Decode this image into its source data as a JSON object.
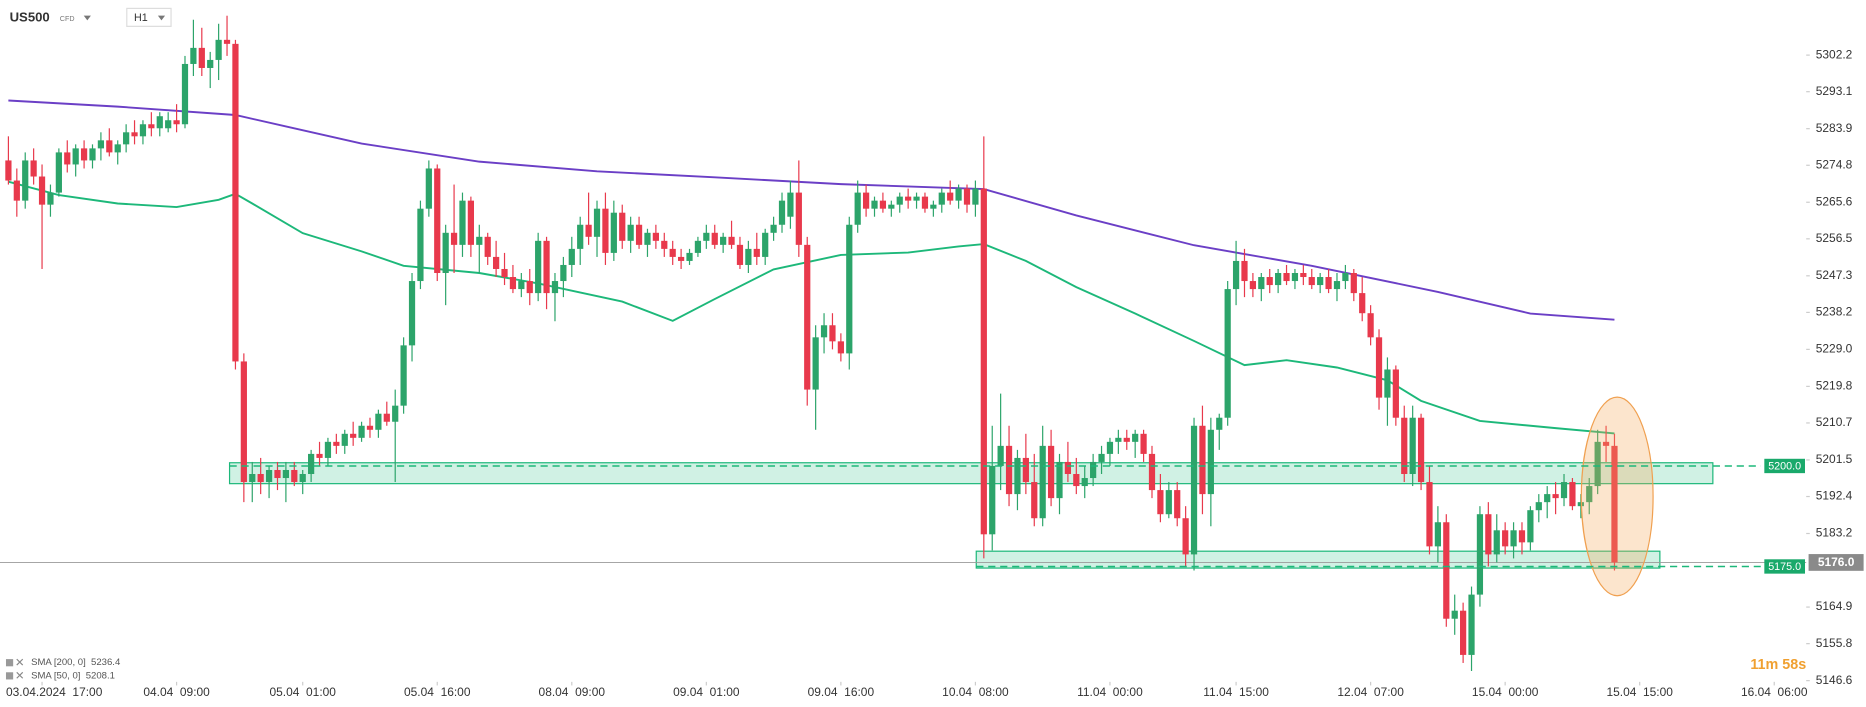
{
  "header": {
    "symbol": "US500",
    "kind": "CFD",
    "timeframe": "H1"
  },
  "countdown": "11m 58s",
  "chart_data": {
    "type": "candlestick",
    "up_color": "#2ca46a",
    "down_color": "#e8394c",
    "xlim": [
      -1,
      213.8
    ],
    "ylim": [
      5146.3,
      5315.9
    ],
    "grid": false,
    "yticks": [
      5302.2,
      5293.1,
      5283.9,
      5274.8,
      5265.6,
      5256.5,
      5247.3,
      5238.2,
      {
        "value": 5229,
        "label": "5229.0"
      },
      5219.8,
      5210.7,
      5201.5,
      5192.4,
      5183.2,
      5164.9,
      5155.8,
      5146.6
    ],
    "xticks": [
      {
        "value": 4,
        "label": "03.04.2024  17:00"
      },
      {
        "value": 20,
        "label": "04.04  09:00"
      },
      {
        "value": 35,
        "label": "05.04  01:00"
      },
      {
        "value": 51,
        "label": "05.04  16:00"
      },
      {
        "value": 67,
        "label": "08.04  09:00"
      },
      {
        "value": 83,
        "label": "09.04  01:00"
      },
      {
        "value": 99,
        "label": "09.04  16:00"
      },
      {
        "value": 115,
        "label": "10.04  08:00"
      },
      {
        "value": 131,
        "label": "11.04  00:00"
      },
      {
        "value": 146,
        "label": "11.04  15:00"
      },
      {
        "value": 162,
        "label": "12.04  07:00"
      },
      {
        "value": 178,
        "label": "15.04  00:00"
      },
      {
        "value": 194,
        "label": "15.04  15:00"
      },
      {
        "value": 210,
        "label": "16.04  06:00"
      }
    ],
    "ohlc": [
      [
        5276,
        5282,
        5270,
        5271
      ],
      [
        5271,
        5274,
        5262,
        5266
      ],
      [
        5266,
        5278,
        5264,
        5276
      ],
      [
        5276,
        5279,
        5270,
        5272
      ],
      [
        5272,
        5275,
        5249,
        5265
      ],
      [
        5265,
        5270,
        5262,
        5268
      ],
      [
        5268,
        5279,
        5267,
        5278
      ],
      [
        5278,
        5281,
        5273,
        5275
      ],
      [
        5275,
        5280,
        5272,
        5279
      ],
      [
        5279,
        5281,
        5274,
        5276
      ],
      [
        5276,
        5280,
        5274,
        5279
      ],
      [
        5279,
        5283,
        5276,
        5281
      ],
      [
        5281,
        5284,
        5277,
        5278
      ],
      [
        5278,
        5281,
        5275,
        5280
      ],
      [
        5280,
        5285,
        5278,
        5283
      ],
      [
        5283,
        5286,
        5280,
        5282
      ],
      [
        5282,
        5286,
        5280,
        5285
      ],
      [
        5285,
        5288,
        5282,
        5284
      ],
      [
        5284,
        5288,
        5282,
        5287
      ],
      [
        5284,
        5288,
        5283,
        5286
      ],
      [
        5286,
        5290,
        5283,
        5285
      ],
      [
        5285,
        5302,
        5284,
        5300
      ],
      [
        5300,
        5311,
        5297,
        5304
      ],
      [
        5304,
        5309,
        5297,
        5299
      ],
      [
        5299,
        5303,
        5294,
        5301
      ],
      [
        5301,
        5310,
        5296,
        5306
      ],
      [
        5306,
        5312,
        5302,
        5305
      ],
      [
        5305,
        5306,
        5224,
        5226
      ],
      [
        5226,
        5228,
        5191,
        5196
      ],
      [
        5196,
        5201,
        5191,
        5198
      ],
      [
        5198,
        5202,
        5193,
        5196
      ],
      [
        5196,
        5200,
        5192,
        5199
      ],
      [
        5199,
        5201,
        5194,
        5197
      ],
      [
        5197,
        5201,
        5191,
        5199
      ],
      [
        5199,
        5201,
        5195,
        5196
      ],
      [
        5196,
        5199,
        5193,
        5198
      ],
      [
        5198,
        5204,
        5196,
        5203
      ],
      [
        5203,
        5206,
        5200,
        5202
      ],
      [
        5202,
        5207,
        5200,
        5206
      ],
      [
        5206,
        5208,
        5203,
        5205
      ],
      [
        5205,
        5209,
        5203,
        5208
      ],
      [
        5208,
        5211,
        5205,
        5207
      ],
      [
        5207,
        5211,
        5206,
        5210
      ],
      [
        5210,
        5212,
        5207,
        5209
      ],
      [
        5209,
        5214,
        5207,
        5213
      ],
      [
        5213,
        5216,
        5210,
        5211
      ],
      [
        5211,
        5219,
        5196,
        5215
      ],
      [
        5215,
        5232,
        5213,
        5230
      ],
      [
        5230,
        5248,
        5226,
        5246
      ],
      [
        5246,
        5266,
        5244,
        5264
      ],
      [
        5264,
        5276,
        5262,
        5274
      ],
      [
        5274,
        5275,
        5246,
        5248
      ],
      [
        5248,
        5260,
        5240,
        5258
      ],
      [
        5258,
        5270,
        5248,
        5255
      ],
      [
        5255,
        5268,
        5252,
        5266
      ],
      [
        5266,
        5267,
        5252,
        5255
      ],
      [
        5255,
        5260,
        5248,
        5257
      ],
      [
        5257,
        5258,
        5250,
        5252
      ],
      [
        5252,
        5256,
        5247,
        5249
      ],
      [
        5249,
        5253,
        5245,
        5247
      ],
      [
        5247,
        5250,
        5243,
        5244
      ],
      [
        5244,
        5248,
        5242,
        5246
      ],
      [
        5246,
        5249,
        5240,
        5243
      ],
      [
        5243,
        5258,
        5241,
        5256
      ],
      [
        5256,
        5257,
        5239,
        5243
      ],
      [
        5243,
        5248,
        5236,
        5246
      ],
      [
        5246,
        5252,
        5242,
        5250
      ],
      [
        5250,
        5257,
        5247,
        5254
      ],
      [
        5254,
        5262,
        5250,
        5260
      ],
      [
        5260,
        5268,
        5255,
        5257
      ],
      [
        5257,
        5266,
        5252,
        5264
      ],
      [
        5264,
        5268,
        5250,
        5253
      ],
      [
        5253,
        5266,
        5251,
        5263
      ],
      [
        5263,
        5265,
        5254,
        5256
      ],
      [
        5256,
        5262,
        5253,
        5260
      ],
      [
        5260,
        5262,
        5254,
        5255
      ],
      [
        5255,
        5259,
        5252,
        5258
      ],
      [
        5258,
        5260,
        5254,
        5256
      ],
      [
        5256,
        5258,
        5252,
        5254
      ],
      [
        5254,
        5256,
        5250,
        5252
      ],
      [
        5252,
        5254,
        5249,
        5251
      ],
      [
        5251,
        5254,
        5250,
        5253
      ],
      [
        5253,
        5257,
        5252,
        5256
      ],
      [
        5256,
        5260,
        5254,
        5258
      ],
      [
        5258,
        5260,
        5254,
        5255
      ],
      [
        5255,
        5258,
        5253,
        5257
      ],
      [
        5257,
        5261,
        5254,
        5255
      ],
      [
        5255,
        5257,
        5249,
        5250
      ],
      [
        5250,
        5256,
        5248,
        5254
      ],
      [
        5254,
        5258,
        5250,
        5252
      ],
      [
        5252,
        5259,
        5250,
        5258
      ],
      [
        5258,
        5262,
        5256,
        5260
      ],
      [
        5260,
        5268,
        5258,
        5266
      ],
      [
        5262,
        5271,
        5259,
        5268
      ],
      [
        5268,
        5276,
        5252,
        5255
      ],
      [
        5255,
        5257,
        5215,
        5219
      ],
      [
        5219,
        5235,
        5209,
        5232
      ],
      [
        5232,
        5238,
        5228,
        5235
      ],
      [
        5235,
        5238,
        5229,
        5231
      ],
      [
        5231,
        5233,
        5226,
        5228
      ],
      [
        5228,
        5262,
        5224,
        5260
      ],
      [
        5260,
        5271,
        5258,
        5268
      ],
      [
        5268,
        5270,
        5262,
        5264
      ],
      [
        5264,
        5267,
        5262,
        5266
      ],
      [
        5266,
        5268,
        5263,
        5264
      ],
      [
        5264,
        5266,
        5262,
        5265
      ],
      [
        5265,
        5268,
        5263,
        5267
      ],
      [
        5267,
        5269,
        5264,
        5266
      ],
      [
        5266,
        5268,
        5264,
        5267
      ],
      [
        5267,
        5268,
        5263,
        5264
      ],
      [
        5264,
        5266,
        5262,
        5265
      ],
      [
        5265,
        5269,
        5263,
        5268
      ],
      [
        5268,
        5271,
        5265,
        5266
      ],
      [
        5266,
        5270,
        5264,
        5269
      ],
      [
        5269,
        5270,
        5263,
        5265
      ],
      [
        5265,
        5271,
        5262,
        5269
      ],
      [
        5269,
        5282,
        5177,
        5183
      ],
      [
        5183,
        5210,
        5179,
        5200
      ],
      [
        5200,
        5218,
        5194,
        5205
      ],
      [
        5205,
        5210,
        5190,
        5193
      ],
      [
        5193,
        5204,
        5189,
        5202
      ],
      [
        5202,
        5208,
        5193,
        5196
      ],
      [
        5196,
        5203,
        5185,
        5187
      ],
      [
        5187,
        5210,
        5185,
        5205
      ],
      [
        5205,
        5209,
        5190,
        5192
      ],
      [
        5192,
        5203,
        5188,
        5201
      ],
      [
        5201,
        5206,
        5196,
        5198
      ],
      [
        5198,
        5202,
        5193,
        5195
      ],
      [
        5195,
        5200,
        5192,
        5197
      ],
      [
        5197,
        5203,
        5195,
        5201
      ],
      [
        5201,
        5205,
        5198,
        5203
      ],
      [
        5203,
        5207,
        5200,
        5206
      ],
      [
        5206,
        5209,
        5203,
        5207
      ],
      [
        5207,
        5209,
        5204,
        5206
      ],
      [
        5206,
        5209,
        5202,
        5208
      ],
      [
        5208,
        5209,
        5201,
        5203
      ],
      [
        5203,
        5205,
        5192,
        5194
      ],
      [
        5194,
        5198,
        5186,
        5188
      ],
      [
        5188,
        5196,
        5187,
        5194
      ],
      [
        5194,
        5196,
        5185,
        5187
      ],
      [
        5187,
        5190,
        5175,
        5178
      ],
      [
        5178,
        5212,
        5174,
        5210
      ],
      [
        5210,
        5215,
        5188,
        5193
      ],
      [
        5193,
        5212,
        5185,
        5209
      ],
      [
        5209,
        5213,
        5204,
        5212
      ],
      [
        5212,
        5246,
        5210,
        5244
      ],
      [
        5244,
        5256,
        5240,
        5251
      ],
      [
        5251,
        5254,
        5242,
        5246
      ],
      [
        5246,
        5248,
        5242,
        5244
      ],
      [
        5244,
        5248,
        5241,
        5247
      ],
      [
        5247,
        5249,
        5243,
        5245
      ],
      [
        5245,
        5249,
        5243,
        5248
      ],
      [
        5248,
        5250,
        5245,
        5246
      ],
      [
        5246,
        5249,
        5244,
        5248
      ],
      [
        5248,
        5250,
        5245,
        5247
      ],
      [
        5247,
        5249,
        5244,
        5245
      ],
      [
        5245,
        5248,
        5243,
        5247
      ],
      [
        5247,
        5249,
        5243,
        5244
      ],
      [
        5244,
        5248,
        5241,
        5246
      ],
      [
        5246,
        5250,
        5244,
        5248
      ],
      [
        5248,
        5249,
        5241,
        5243
      ],
      [
        5243,
        5247,
        5236,
        5238
      ],
      [
        5238,
        5240,
        5230,
        5232
      ],
      [
        5232,
        5234,
        5214,
        5217
      ],
      [
        5217,
        5227,
        5210,
        5224
      ],
      [
        5224,
        5225,
        5210,
        5212
      ],
      [
        5212,
        5215,
        5196,
        5198
      ],
      [
        5198,
        5215,
        5195,
        5212
      ],
      [
        5212,
        5213,
        5194,
        5196
      ],
      [
        5196,
        5200,
        5178,
        5180
      ],
      [
        5180,
        5190,
        5176,
        5186
      ],
      [
        5186,
        5188,
        5160,
        5162
      ],
      [
        5162,
        5168,
        5158,
        5164
      ],
      [
        5164,
        5166,
        5151,
        5153
      ],
      [
        5153,
        5170,
        5149,
        5168
      ],
      [
        5168,
        5190,
        5165,
        5188
      ],
      [
        5188,
        5191,
        5175,
        5178
      ],
      [
        5178,
        5188,
        5176,
        5184
      ],
      [
        5184,
        5186,
        5178,
        5180
      ],
      [
        5180,
        5186,
        5177,
        5184
      ],
      [
        5184,
        5186,
        5178,
        5181
      ],
      [
        5181,
        5190,
        5179,
        5189
      ],
      [
        5189,
        5193,
        5186,
        5191
      ],
      [
        5191,
        5195,
        5187,
        5193
      ],
      [
        5193,
        5196,
        5188,
        5192
      ],
      [
        5192,
        5198,
        5190,
        5196
      ],
      [
        5196,
        5197,
        5189,
        5190
      ],
      [
        5190,
        5193,
        5187,
        5191
      ],
      [
        5191,
        5197,
        5188,
        5195
      ],
      [
        5195,
        5209,
        5193,
        5206
      ],
      [
        5206,
        5210,
        5201,
        5205
      ],
      [
        5205,
        5208,
        5174,
        5176
      ]
    ],
    "sma": [
      {
        "name": "SMA [200, 0]  5236.4",
        "color": "#6b3fc6",
        "x": [
          0,
          13,
          27,
          42,
          56,
          70,
          84,
          99,
          116,
          127,
          141,
          155,
          170,
          181,
          191
        ],
        "values": [
          5290.9,
          5289.4,
          5287.3,
          5280.2,
          5275.7,
          5273.3,
          5271.8,
          5270.1,
          5268.9,
          5262.3,
          5254.9,
          5249.8,
          5243.3,
          5237.9,
          5236.4
        ]
      },
      {
        "name": "SMA [50, 0]  5208.1",
        "color": "#1db87a",
        "x": [
          0,
          6,
          13,
          20,
          25,
          27,
          29,
          35,
          42,
          47,
          56,
          63,
          73,
          79,
          84,
          91,
          99,
          107,
          113,
          116,
          121,
          127,
          134,
          141,
          147,
          152,
          158,
          164,
          168,
          175,
          184,
          191
        ],
        "values": [
          5270.7,
          5267.4,
          5265.3,
          5264.4,
          5266.2,
          5267.7,
          5265.3,
          5257.9,
          5253.4,
          5249.8,
          5248.0,
          5245.4,
          5240.9,
          5236.1,
          5241.5,
          5248.9,
          5252.5,
          5253.1,
          5254.6,
          5255.2,
          5251.0,
          5244.5,
          5237.9,
          5231.1,
          5225.1,
          5226.3,
          5224.5,
          5221.3,
          5216.2,
          5211.2,
          5209.4,
          5208.1
        ]
      }
    ],
    "zones": [
      {
        "low": 5195.6,
        "high": 5200.8,
        "start": 26.3,
        "end": 202.7,
        "level": {
          "value": 5200,
          "label": "5200.0"
        }
      },
      {
        "low": 5174.6,
        "high": 5178.8,
        "start": 115.1,
        "end": 196.4,
        "level": {
          "value": 5175,
          "label": "5175.0"
        }
      }
    ],
    "last_price": {
      "value": 5176,
      "label": "5176.0"
    }
  }
}
